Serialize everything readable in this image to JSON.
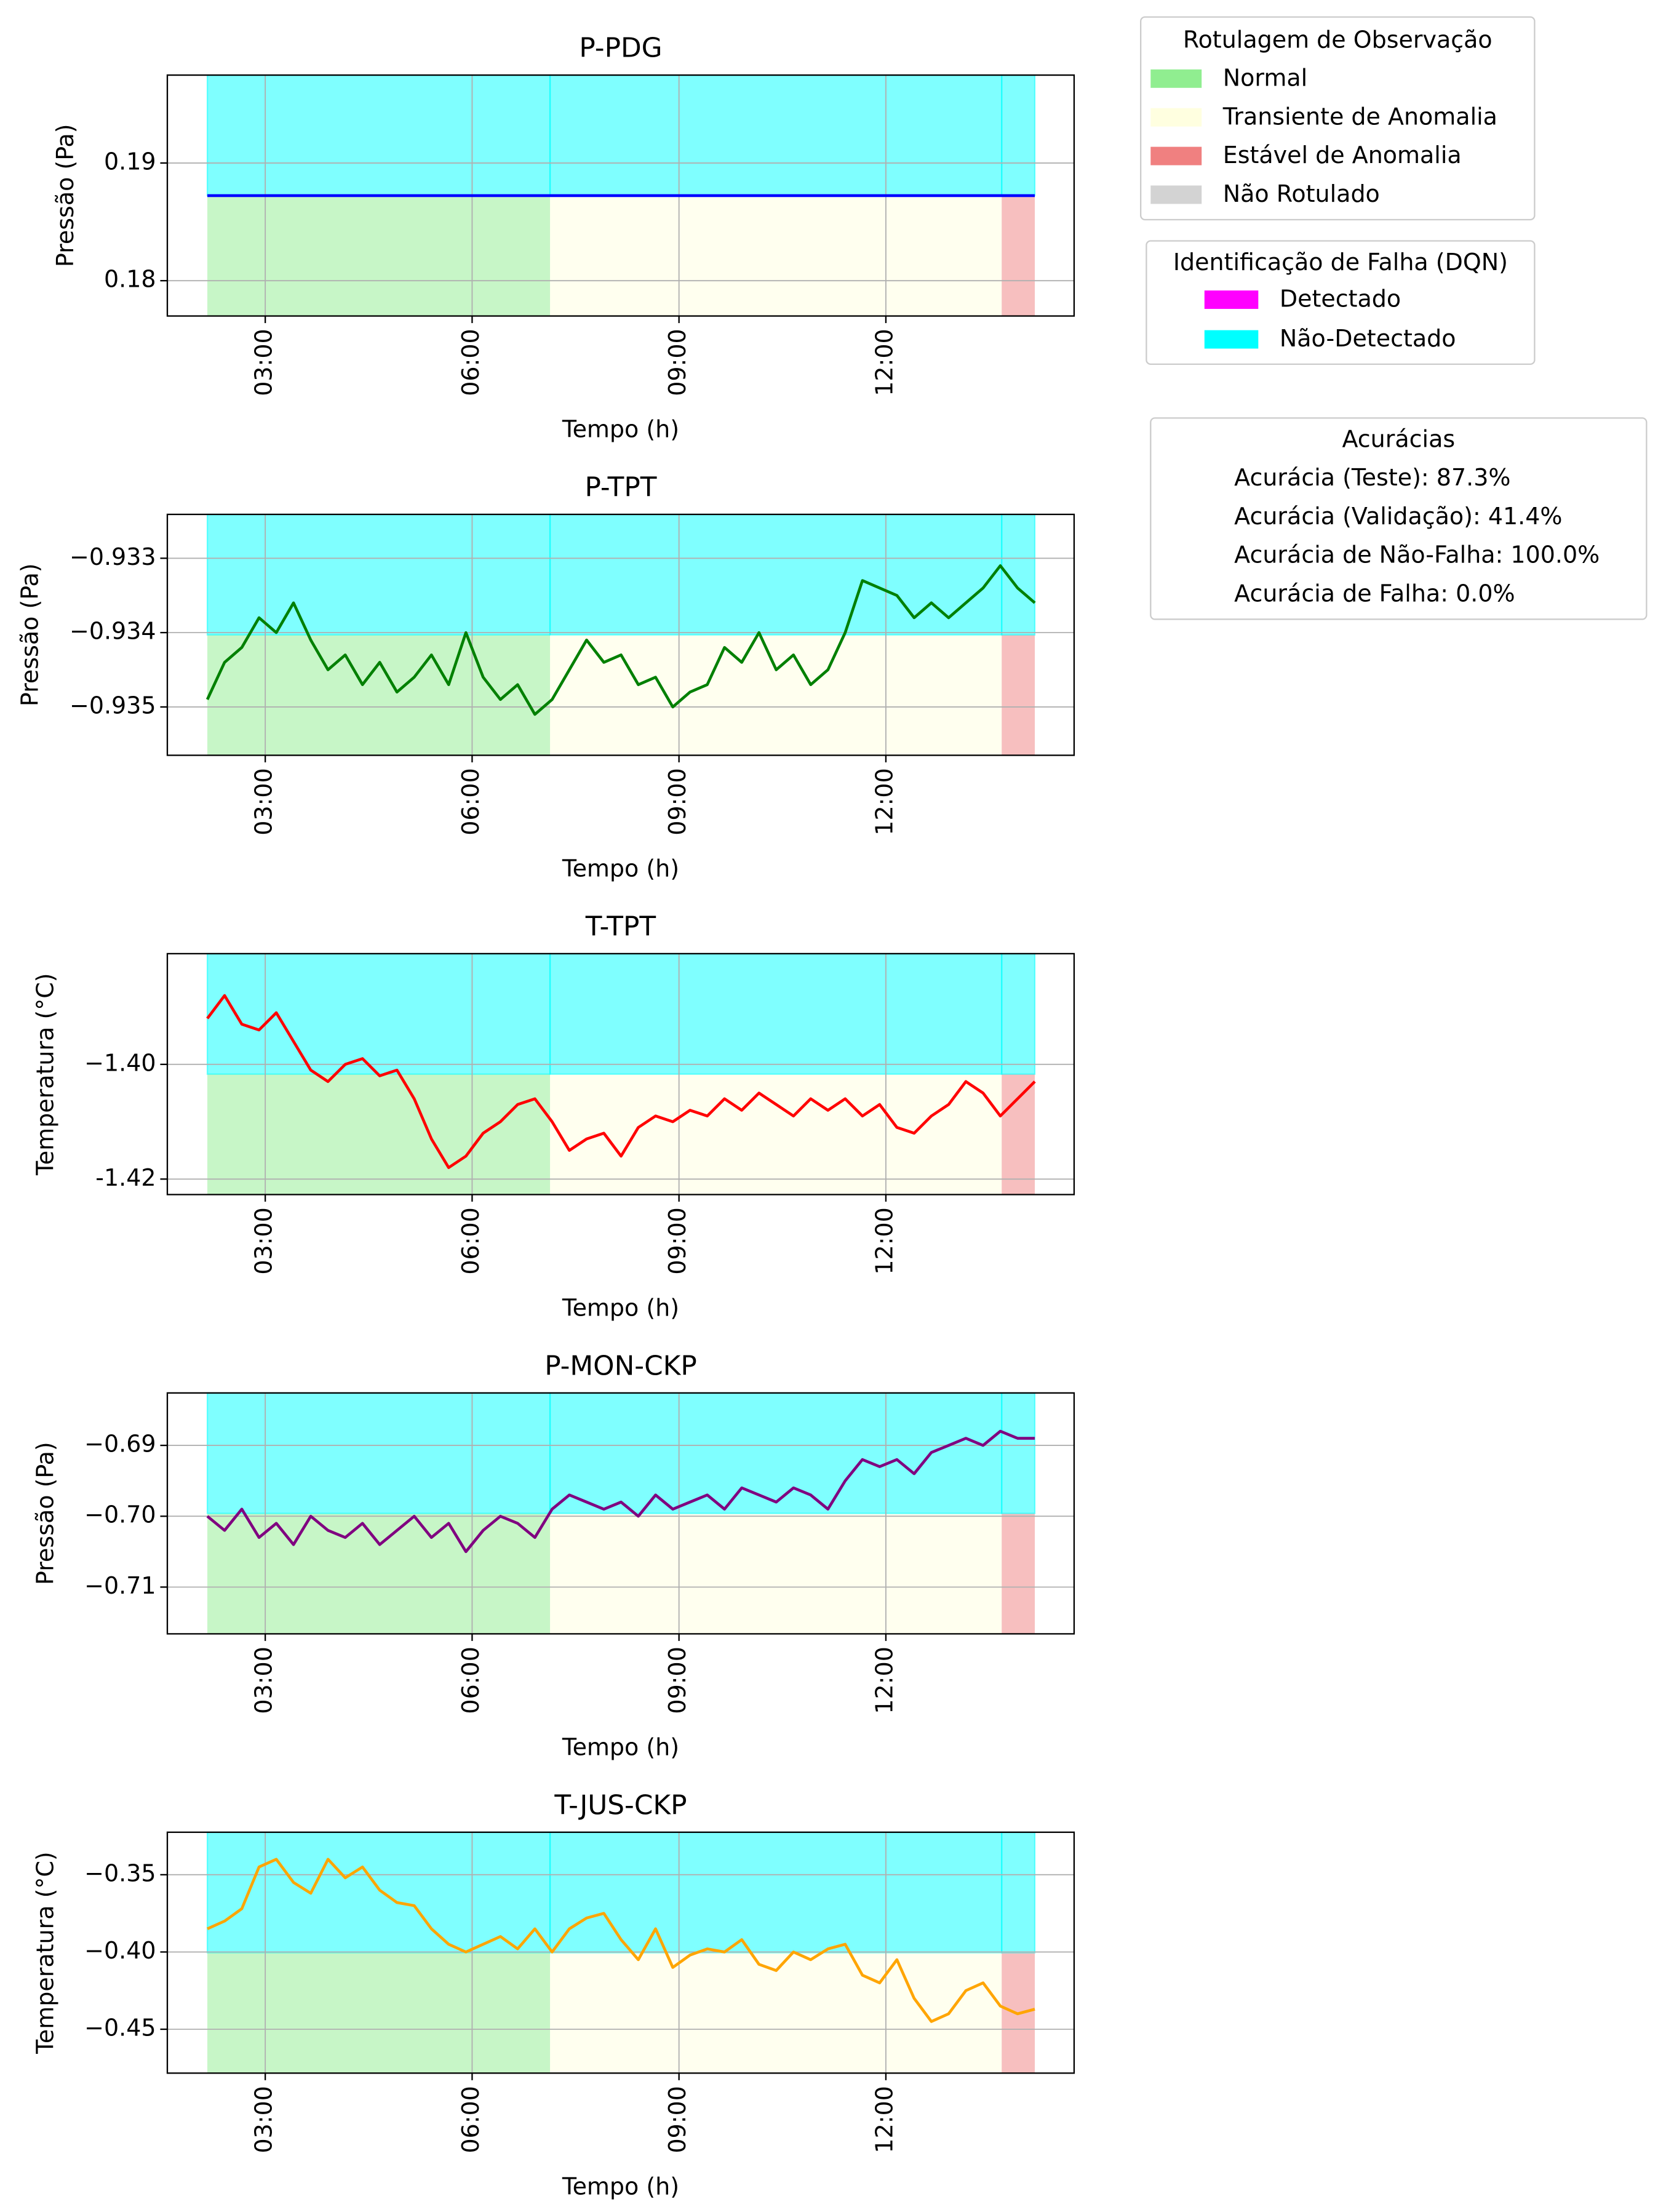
{
  "segments": [
    {
      "start": 2.16,
      "end": 7.13,
      "label": "Normal",
      "detection": "Não-Detectado"
    },
    {
      "start": 7.13,
      "end": 13.68,
      "label": "Transiente de Anomalia",
      "detection": "Não-Detectado"
    },
    {
      "start": 13.68,
      "end": 14.16,
      "label": "Estável de Anomalia",
      "detection": "Não-Detectado"
    }
  ],
  "labels_legend": {
    "title": "Rotulagem de Observação",
    "items": [
      {
        "label": "Normal",
        "color": "#90ee90"
      },
      {
        "label": "Transiente de Anomalia",
        "color": "#ffffe0"
      },
      {
        "label": "Estável de Anomalia",
        "color": "#f08080"
      },
      {
        "label": "Não Rotulado",
        "color": "#d3d3d3"
      }
    ]
  },
  "detection_legend": {
    "title": "Identificação de Falha (DQN)",
    "items": [
      {
        "label": "Detectado",
        "color": "#ff00ff"
      },
      {
        "label": "Não-Detectado",
        "color": "#00ffff"
      }
    ]
  },
  "accuracy_box": {
    "title": "Acurácias",
    "lines": [
      "Acurácia (Teste): 87.3%",
      "Acurácia (Validação): 41.4%",
      "Acurácia de Não-Falha: 100.0%",
      "Acurácia de Falha: 0.0%"
    ]
  },
  "chart_data": [
    {
      "type": "line",
      "title": "P-PDG",
      "xlabel": "Tempo (h)",
      "ylabel": "Pressão (Pa)",
      "color": "#0000ff",
      "x": [
        2.16,
        14.16
      ],
      "values": [
        0.18723,
        0.18723
      ],
      "xlim": [
        1.58,
        14.73
      ],
      "xticks": [
        {
          "value": 3,
          "label": "03:00"
        },
        {
          "value": 6,
          "label": "06:00"
        },
        {
          "value": 9,
          "label": "09:00"
        },
        {
          "value": 12,
          "label": "12:00"
        }
      ],
      "ylim": [
        0.177,
        0.19747
      ],
      "yticks": [
        0.18,
        0.19
      ],
      "grid": true
    },
    {
      "type": "line",
      "title": "P-TPT",
      "xlabel": "Tempo (h)",
      "ylabel": "Pressão (Pa)",
      "color": "#008000",
      "x": [
        2.16,
        2.41,
        2.66,
        2.91,
        3.16,
        3.41,
        3.66,
        3.91,
        4.16,
        4.41,
        4.66,
        4.91,
        5.16,
        5.41,
        5.66,
        5.91,
        6.16,
        6.41,
        6.66,
        6.91,
        7.16,
        7.41,
        7.66,
        7.91,
        8.16,
        8.41,
        8.66,
        8.91,
        9.16,
        9.41,
        9.66,
        9.91,
        10.16,
        10.41,
        10.66,
        10.91,
        11.16,
        11.41,
        11.66,
        11.91,
        12.16,
        12.41,
        12.66,
        12.91,
        13.16,
        13.41,
        13.66,
        13.91,
        14.16
      ],
      "values": [
        -0.9349,
        -0.9344,
        -0.9342,
        -0.9338,
        -0.934,
        -0.9336,
        -0.9341,
        -0.9345,
        -0.9343,
        -0.9347,
        -0.9344,
        -0.9348,
        -0.9346,
        -0.9343,
        -0.9347,
        -0.934,
        -0.9346,
        -0.9349,
        -0.9347,
        -0.9351,
        -0.9349,
        -0.9345,
        -0.9341,
        -0.9344,
        -0.9343,
        -0.9347,
        -0.9346,
        -0.935,
        -0.9348,
        -0.9347,
        -0.9342,
        -0.9344,
        -0.934,
        -0.9345,
        -0.9343,
        -0.9347,
        -0.9345,
        -0.934,
        -0.9333,
        -0.9334,
        -0.9335,
        -0.9338,
        -0.9336,
        -0.9338,
        -0.9336,
        -0.9334,
        -0.9331,
        -0.9334,
        -0.9336
      ],
      "xlim": [
        1.58,
        14.73
      ],
      "xticks": [
        {
          "value": 3,
          "label": "03:00"
        },
        {
          "value": 6,
          "label": "06:00"
        },
        {
          "value": 9,
          "label": "09:00"
        },
        {
          "value": 12,
          "label": "12:00"
        }
      ],
      "ylim": [
        -0.93565,
        -0.93241
      ],
      "yticks": [
        {
          "value": -0.935,
          "label": "−0.935"
        },
        {
          "value": -0.934,
          "label": "−0.934"
        },
        {
          "value": -0.933,
          "label": "−0.933"
        }
      ],
      "grid": true
    },
    {
      "type": "line",
      "title": "T-TPT",
      "xlabel": "Tempo (h)",
      "ylabel": "Temperatura (°C)",
      "color": "#ff0000",
      "x": [
        2.16,
        2.41,
        2.66,
        2.91,
        3.16,
        3.41,
        3.66,
        3.91,
        4.16,
        4.41,
        4.66,
        4.91,
        5.16,
        5.41,
        5.66,
        5.91,
        6.16,
        6.41,
        6.66,
        6.91,
        7.16,
        7.41,
        7.66,
        7.91,
        8.16,
        8.41,
        8.66,
        8.91,
        9.16,
        9.41,
        9.66,
        9.91,
        10.16,
        10.41,
        10.66,
        10.91,
        11.16,
        11.41,
        11.66,
        11.91,
        12.16,
        12.41,
        12.66,
        12.91,
        13.16,
        13.41,
        13.66,
        13.91,
        14.16
      ],
      "values": [
        -1.392,
        -1.388,
        -1.393,
        -1.394,
        -1.391,
        -1.396,
        -1.401,
        -1.403,
        -1.4,
        -1.399,
        -1.402,
        -1.401,
        -1.406,
        -1.413,
        -1.418,
        -1.416,
        -1.412,
        -1.41,
        -1.407,
        -1.406,
        -1.41,
        -1.415,
        -1.413,
        -1.412,
        -1.416,
        -1.411,
        -1.409,
        -1.41,
        -1.408,
        -1.409,
        -1.406,
        -1.408,
        -1.405,
        -1.407,
        -1.409,
        -1.406,
        -1.408,
        -1.406,
        -1.409,
        -1.407,
        -1.411,
        -1.412,
        -1.409,
        -1.407,
        -1.403,
        -1.405,
        -1.409,
        -1.406,
        -1.403
      ],
      "xlim": [
        1.58,
        14.73
      ],
      "xticks": [
        {
          "value": 3,
          "label": "03:00"
        },
        {
          "value": 6,
          "label": "06:00"
        },
        {
          "value": 9,
          "label": "09:00"
        },
        {
          "value": 12,
          "label": "12:00"
        }
      ],
      "ylim": [
        -1.4227,
        -1.3807
      ],
      "yticks": [
        {
          "value": -1.42,
          "label": "-1.42"
        },
        {
          "value": -1.4,
          "label": "−1.40"
        }
      ],
      "grid": true
    },
    {
      "type": "line",
      "title": "P-MON-CKP",
      "xlabel": "Tempo (h)",
      "ylabel": "Pressão (Pa)",
      "color": "#800080",
      "x": [
        2.16,
        2.41,
        2.66,
        2.91,
        3.16,
        3.41,
        3.66,
        3.91,
        4.16,
        4.41,
        4.66,
        4.91,
        5.16,
        5.41,
        5.66,
        5.91,
        6.16,
        6.41,
        6.66,
        6.91,
        7.16,
        7.41,
        7.66,
        7.91,
        8.16,
        8.41,
        8.66,
        8.91,
        9.16,
        9.41,
        9.66,
        9.91,
        10.16,
        10.41,
        10.66,
        10.91,
        11.16,
        11.41,
        11.66,
        11.91,
        12.16,
        12.41,
        12.66,
        12.91,
        13.16,
        13.41,
        13.66,
        13.91,
        14.16
      ],
      "values": [
        -0.7,
        -0.702,
        -0.699,
        -0.703,
        -0.701,
        -0.704,
        -0.7,
        -0.702,
        -0.703,
        -0.701,
        -0.704,
        -0.702,
        -0.7,
        -0.703,
        -0.701,
        -0.705,
        -0.702,
        -0.7,
        -0.701,
        -0.703,
        -0.699,
        -0.697,
        -0.698,
        -0.699,
        -0.698,
        -0.7,
        -0.697,
        -0.699,
        -0.698,
        -0.697,
        -0.699,
        -0.696,
        -0.697,
        -0.698,
        -0.696,
        -0.697,
        -0.699,
        -0.695,
        -0.692,
        -0.693,
        -0.692,
        -0.694,
        -0.691,
        -0.69,
        -0.689,
        -0.69,
        -0.688,
        -0.689,
        -0.689
      ],
      "xlim": [
        1.58,
        14.73
      ],
      "xticks": [
        {
          "value": 3,
          "label": "03:00"
        },
        {
          "value": 6,
          "label": "06:00"
        },
        {
          "value": 9,
          "label": "09:00"
        },
        {
          "value": 12,
          "label": "12:00"
        }
      ],
      "ylim": [
        -0.7166,
        -0.6826
      ],
      "yticks": [
        {
          "value": -0.71,
          "label": "−0.71"
        },
        {
          "value": -0.7,
          "label": "−0.70"
        },
        {
          "value": -0.69,
          "label": "−0.69"
        }
      ],
      "grid": true
    },
    {
      "type": "line",
      "title": "T-JUS-CKP",
      "xlabel": "Tempo (h)",
      "ylabel": "Temperatura (°C)",
      "color": "#ffa500",
      "x": [
        2.16,
        2.41,
        2.66,
        2.91,
        3.16,
        3.41,
        3.66,
        3.91,
        4.16,
        4.41,
        4.66,
        4.91,
        5.16,
        5.41,
        5.66,
        5.91,
        6.16,
        6.41,
        6.66,
        6.91,
        7.16,
        7.41,
        7.66,
        7.91,
        8.16,
        8.41,
        8.66,
        8.91,
        9.16,
        9.41,
        9.66,
        9.91,
        10.16,
        10.41,
        10.66,
        10.91,
        11.16,
        11.41,
        11.66,
        11.91,
        12.16,
        12.41,
        12.66,
        12.91,
        13.16,
        13.41,
        13.66,
        13.91,
        14.16
      ],
      "values": [
        -0.385,
        -0.38,
        -0.372,
        -0.345,
        -0.34,
        -0.355,
        -0.362,
        -0.34,
        -0.352,
        -0.345,
        -0.36,
        -0.368,
        -0.37,
        -0.385,
        -0.395,
        -0.4,
        -0.395,
        -0.39,
        -0.398,
        -0.385,
        -0.4,
        -0.385,
        -0.378,
        -0.375,
        -0.392,
        -0.405,
        -0.385,
        -0.41,
        -0.402,
        -0.398,
        -0.4,
        -0.392,
        -0.408,
        -0.412,
        -0.4,
        -0.405,
        -0.398,
        -0.395,
        -0.415,
        -0.42,
        -0.405,
        -0.43,
        -0.445,
        -0.44,
        -0.425,
        -0.42,
        -0.435,
        -0.44,
        -0.437
      ],
      "xlim": [
        1.58,
        14.73
      ],
      "xticks": [
        {
          "value": 3,
          "label": "03:00"
        },
        {
          "value": 6,
          "label": "06:00"
        },
        {
          "value": 9,
          "label": "09:00"
        },
        {
          "value": 12,
          "label": "12:00"
        }
      ],
      "ylim": [
        -0.4784,
        -0.3225
      ],
      "yticks": [
        {
          "value": -0.45,
          "label": "−0.45"
        },
        {
          "value": -0.4,
          "label": "−0.40"
        },
        {
          "value": -0.35,
          "label": "−0.35"
        }
      ],
      "grid": true
    }
  ]
}
